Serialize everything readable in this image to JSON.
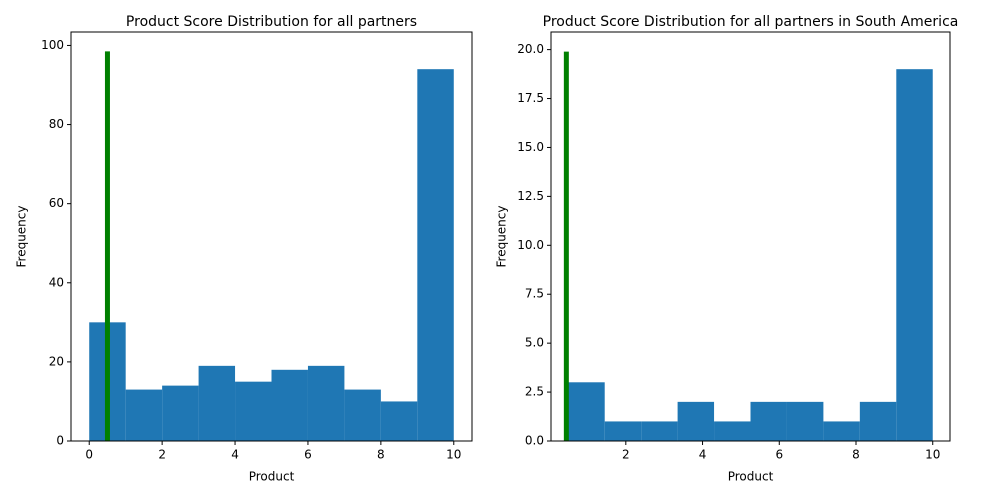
{
  "chart_data": [
    {
      "type": "histogram",
      "title": "Product Score Distribution for all partners",
      "xlabel": "Product",
      "ylabel": "Frequency",
      "bins": [
        0,
        1,
        2,
        3,
        4,
        5,
        6,
        7,
        8,
        9,
        10
      ],
      "values": [
        30,
        13,
        14,
        19,
        15,
        18,
        19,
        13,
        10,
        94
      ],
      "color": "#1f77b4",
      "vline": {
        "x": 0.5,
        "ymax": 98.5,
        "color": "#008000"
      },
      "xlim": [
        -0.5,
        10.5
      ],
      "xticks": [
        0,
        2,
        4,
        6,
        8,
        10
      ],
      "ylim": [
        0,
        103.4
      ],
      "yticks": [
        0,
        20,
        40,
        60,
        80,
        100
      ]
    },
    {
      "type": "histogram",
      "title": "Product Score Distribution for all partners in South America",
      "xlabel": "Product",
      "ylabel": "Frequency",
      "bins": [
        0.5,
        1.45,
        2.4,
        3.35,
        4.3,
        5.25,
        6.2,
        7.15,
        8.1,
        9.05,
        10
      ],
      "values": [
        3,
        1,
        1,
        2,
        1,
        2,
        2,
        1,
        2,
        19
      ],
      "color": "#1f77b4",
      "vline": {
        "x": 0.45,
        "ymax": 19.9,
        "color": "#008000"
      },
      "xlim": [
        0.05,
        10.45
      ],
      "xticks": [
        2,
        4,
        6,
        8,
        10
      ],
      "ylim": [
        0,
        20.9
      ],
      "yticks": [
        {
          "value": 0,
          "label": "0.0"
        },
        {
          "value": 2.5,
          "label": "2.5"
        },
        {
          "value": 5,
          "label": "5.0"
        },
        {
          "value": 7.5,
          "label": "7.5"
        },
        {
          "value": 10,
          "label": "10.0"
        },
        {
          "value": 12.5,
          "label": "12.5"
        },
        {
          "value": 15,
          "label": "15.0"
        },
        {
          "value": 17.5,
          "label": "17.5"
        },
        {
          "value": 20,
          "label": "20.0"
        }
      ]
    }
  ]
}
